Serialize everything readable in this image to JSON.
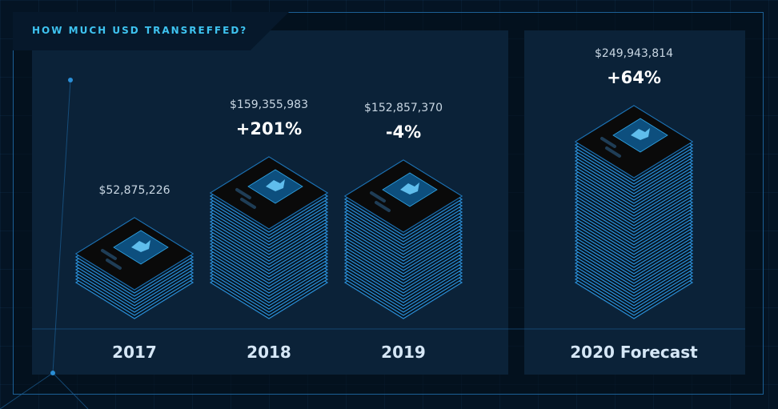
{
  "title": "HOW MUCH USD TRANSREFFED?",
  "colors": {
    "background": "#041424",
    "panel": "#0b2238",
    "accent": "#3ec3f0",
    "stack_edge": "#2a8ed6",
    "stack_top": "#0a0a0a",
    "screen": "#0d4f7e"
  },
  "icons": [
    "money-stack-icon"
  ],
  "chart_data": {
    "type": "bar",
    "title": "HOW MUCH USD TRANSREFFED?",
    "categories": [
      "2017",
      "2018",
      "2019",
      "2020 Forecast"
    ],
    "values": [
      52875226,
      159355983,
      152857370,
      249943814
    ],
    "value_labels": [
      "$52,875,226",
      "$159,355,983",
      "$152,857,370",
      "$249,943,814"
    ],
    "change_labels": [
      "",
      "+201%",
      "-4%",
      "+64%"
    ],
    "forecast": [
      false,
      false,
      false,
      true
    ],
    "unit": "USD",
    "ylim": [
      0,
      249943814
    ],
    "grid": false,
    "legend": "none"
  }
}
